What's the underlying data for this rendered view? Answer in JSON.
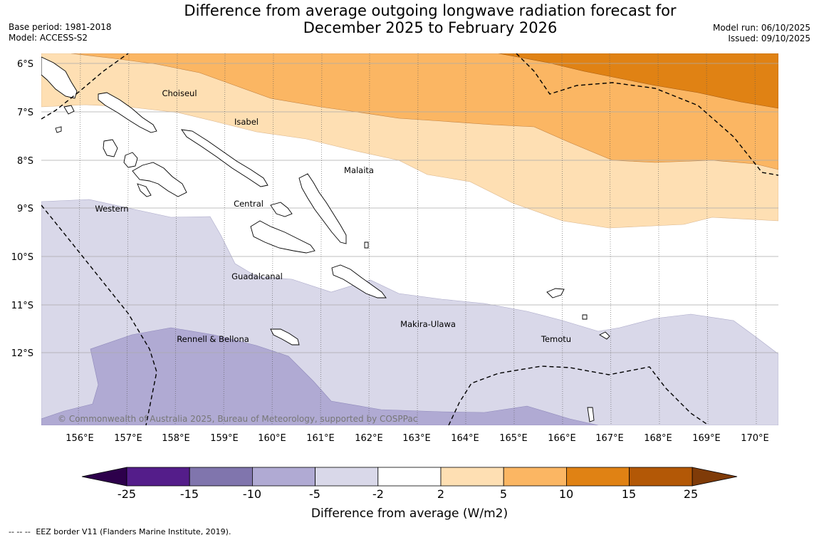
{
  "header": {
    "title_line1": "Difference from average outgoing longwave radiation forecast for",
    "title_line2": "December 2025 to February 2026",
    "base_period": "Base period: 1981-2018",
    "model": "Model: ACCESS-S2",
    "model_run": "Model run: 06/10/2025",
    "issued": "Issued: 09/10/2025"
  },
  "map": {
    "lat_labels": [
      "6°S",
      "7°S",
      "8°S",
      "9°S",
      "10°S",
      "11°S",
      "12°S"
    ],
    "lon_labels": [
      "156°E",
      "157°E",
      "158°E",
      "159°E",
      "160°E",
      "161°E",
      "162°E",
      "163°E",
      "164°E",
      "165°E",
      "166°E",
      "167°E",
      "168°E",
      "169°E",
      "170°E"
    ],
    "province_labels": [
      "Choiseul",
      "Isabel",
      "Malaita",
      "Western",
      "Central",
      "Guadalcanal",
      "Makira-Ulawa",
      "Temotu",
      "Rennell & Bellona"
    ],
    "copyright": "© Commonwealth of Australia 2025, Bureau of Meteorology, supported by COSPPac"
  },
  "colorbar": {
    "ticks": [
      "-25",
      "-15",
      "-10",
      "-5",
      "-2",
      "2",
      "5",
      "10",
      "15",
      "25"
    ],
    "colors": [
      "#541d8a",
      "#8075ad",
      "#b0aad3",
      "#d9d8e9",
      "#ffffff",
      "#fedfb3",
      "#fbb663",
      "#e08214",
      "#b35806"
    ],
    "under_color": "#2d004b",
    "over_color": "#7f3b08",
    "label": "Difference from average (W/m2)"
  },
  "footnote": {
    "dashes": "--  --  --",
    "text": "EEZ border V11 (Flanders Marine Institute, 2019)."
  }
}
